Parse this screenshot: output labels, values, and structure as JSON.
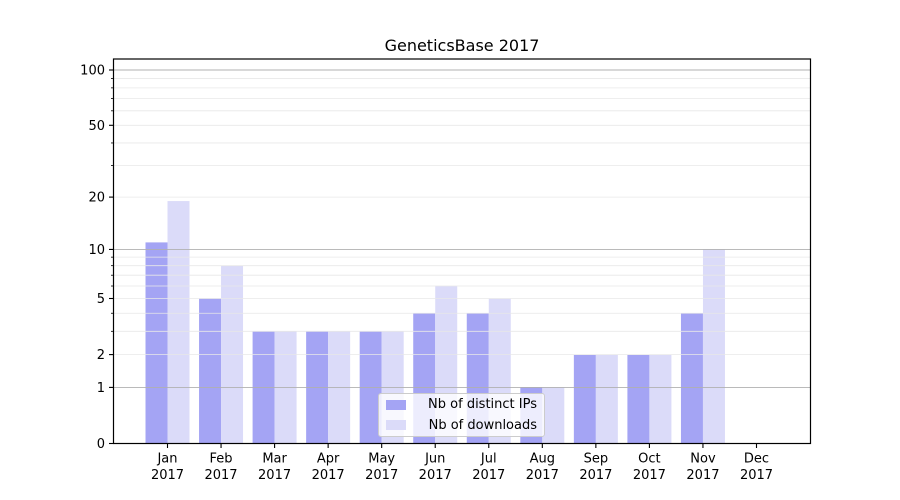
{
  "chart_data": {
    "type": "bar",
    "title": "GeneticsBase 2017",
    "year": "2017",
    "categories": [
      "Jan",
      "Feb",
      "Mar",
      "Apr",
      "May",
      "Jun",
      "Jul",
      "Aug",
      "Sep",
      "Oct",
      "Nov",
      "Dec"
    ],
    "series": [
      {
        "name": "Nb of distinct IPs",
        "color": "#a4a4f4",
        "values": [
          11,
          5,
          3,
          3,
          3,
          4,
          4,
          1,
          2,
          2,
          4,
          0
        ]
      },
      {
        "name": "Nb of downloads",
        "color": "#dbdbf9",
        "values": [
          19,
          8,
          3,
          3,
          3,
          6,
          5,
          1,
          2,
          2,
          10,
          0
        ]
      }
    ],
    "xlabel": "",
    "ylabel": "",
    "yscale": "log1p",
    "ylim": [
      0,
      115
    ],
    "yticks_labeled": [
      0,
      1,
      2,
      5,
      10,
      20,
      50,
      100
    ],
    "yticks_major_grid": [
      1,
      10,
      100
    ],
    "yticks_minor_grid": [
      2,
      3,
      4,
      5,
      6,
      7,
      8,
      9,
      20,
      30,
      40,
      50,
      60,
      70,
      80,
      90
    ],
    "grid": {
      "on": true,
      "major_color": "#b0b0b0",
      "minor_color": "#e8e8e8"
    },
    "legend": {
      "position": "lower center",
      "entries": [
        "Nb of distinct IPs",
        "Nb of downloads"
      ]
    },
    "axis_color": "#000000",
    "text_color": "#000000",
    "background_color": "#ffffff"
  }
}
